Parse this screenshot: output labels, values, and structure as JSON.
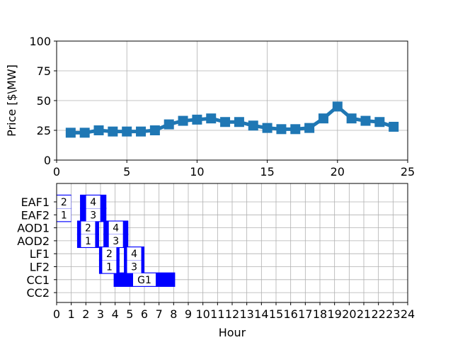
{
  "chart_data": [
    {
      "type": "line",
      "ylabel": "Price [$\\MW]",
      "xlim": [
        0,
        25
      ],
      "ylim": [
        0,
        100
      ],
      "xticks": [
        "0",
        "5",
        "10",
        "15",
        "20",
        "25"
      ],
      "yticks": [
        "0",
        "25",
        "50",
        "75",
        "100"
      ],
      "grid": true,
      "series": [
        {
          "color": "#1f77b4",
          "marker": "square",
          "x": [
            1,
            2,
            3,
            4,
            5,
            6,
            7,
            8,
            9,
            10,
            11,
            12,
            13,
            14,
            15,
            16,
            17,
            18,
            19,
            20,
            21,
            22,
            23,
            24
          ],
          "y": [
            23,
            23,
            25,
            24,
            24,
            24,
            25,
            30,
            33,
            34,
            35,
            32,
            32,
            29,
            27,
            26,
            26,
            27,
            35,
            45,
            35,
            33,
            32,
            28
          ]
        }
      ]
    },
    {
      "type": "gantt",
      "xlabel": "Hour",
      "xlim": [
        0,
        24
      ],
      "xticks": [
        "0",
        "1",
        "2",
        "3",
        "4",
        "5",
        "6",
        "7",
        "8",
        "9",
        "10",
        "11",
        "12",
        "13",
        "14",
        "15",
        "16",
        "17",
        "18",
        "19",
        "20",
        "21",
        "22",
        "23",
        "24"
      ],
      "units": [
        "EAF1",
        "EAF2",
        "AOD1",
        "AOD2",
        "LF1",
        "LF2",
        "CC1",
        "CC2"
      ],
      "grid": true,
      "bar_color": "#0000ff",
      "tasks": [
        {
          "unit": "EAF1",
          "start": 0.0,
          "end": 1.0,
          "label": "2"
        },
        {
          "unit": "EAF2",
          "start": 0.0,
          "end": 1.0,
          "label": "1"
        },
        {
          "unit": "EAF1",
          "start": 1.6,
          "end": 3.4,
          "label": "4"
        },
        {
          "unit": "EAF2",
          "start": 1.6,
          "end": 3.4,
          "label": "3"
        },
        {
          "unit": "AOD1",
          "start": 1.4,
          "end": 2.9,
          "label": "2"
        },
        {
          "unit": "AOD2",
          "start": 1.4,
          "end": 2.9,
          "label": "1"
        },
        {
          "unit": "AOD1",
          "start": 3.2,
          "end": 4.9,
          "label": "4"
        },
        {
          "unit": "AOD2",
          "start": 3.2,
          "end": 4.9,
          "label": "3"
        },
        {
          "unit": "LF1",
          "start": 2.9,
          "end": 4.3,
          "label": "2"
        },
        {
          "unit": "LF2",
          "start": 2.9,
          "end": 4.3,
          "label": "1"
        },
        {
          "unit": "LF1",
          "start": 4.6,
          "end": 6.0,
          "label": "4"
        },
        {
          "unit": "LF2",
          "start": 4.6,
          "end": 6.0,
          "label": "3"
        },
        {
          "unit": "CC1",
          "start": 3.9,
          "end": 8.1,
          "label": "G1"
        }
      ]
    }
  ]
}
